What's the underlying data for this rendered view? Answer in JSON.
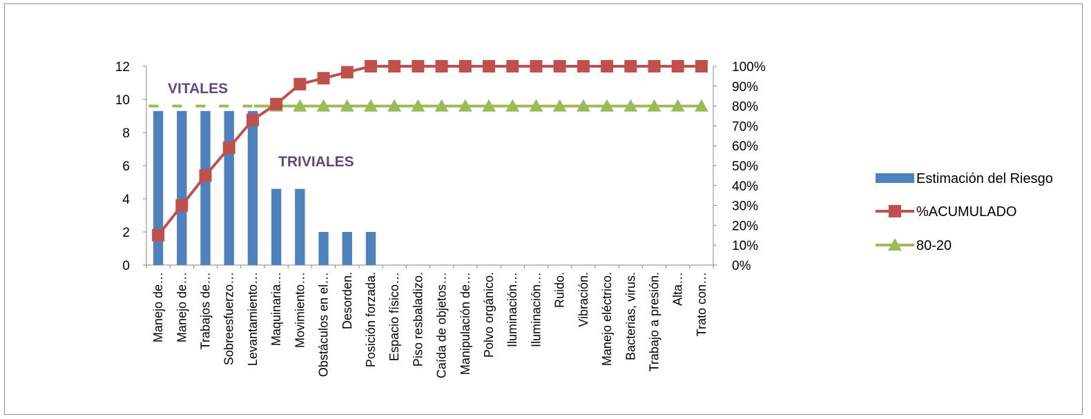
{
  "chart_data": {
    "type": "bar",
    "categories": [
      "Manejo de…",
      "Manejo de…",
      "Trabajos de…",
      "Sobreesfuerzo…",
      "Levantamiento…",
      "Maquinaria…",
      "Movimiento…",
      "Obstáculos en el…",
      "Desorden.",
      "Posición forzada.",
      "Espacio físico…",
      "Piso resbaladizo.",
      "Caída de objetos…",
      "Manipulación de…",
      "Polvo orgánico.",
      "Iluminación…",
      "Iluminación…",
      "Ruido.",
      "Vibración.",
      "Manejo eléctrico.",
      "Bacterias, virus.",
      "Trabajo a presión.",
      "Alta…",
      "Trato con…"
    ],
    "series": [
      {
        "name": "Estimación del Riesgo",
        "type": "bar",
        "axis": "left",
        "color": "#4f81bd",
        "values": [
          9.3,
          9.3,
          9.3,
          9.3,
          9.3,
          4.6,
          4.6,
          2,
          2,
          2,
          0,
          0,
          0,
          0,
          0,
          0,
          0,
          0,
          0,
          0,
          0,
          0,
          0,
          0
        ]
      },
      {
        "name": "%ACUMULADO",
        "type": "line",
        "axis": "right",
        "color": "#c0504d",
        "marker": "square",
        "values": [
          0.15,
          0.3,
          0.45,
          0.59,
          0.73,
          0.81,
          0.91,
          0.94,
          0.97,
          1,
          1,
          1,
          1,
          1,
          1,
          1,
          1,
          1,
          1,
          1,
          1,
          1,
          1,
          1
        ]
      },
      {
        "name": "80-20",
        "type": "line",
        "axis": "right",
        "color": "#9bbb59",
        "marker": "triangle",
        "values": [
          0.8,
          0.8,
          0.8,
          0.8,
          0.8,
          0.8,
          0.8,
          0.8,
          0.8,
          0.8,
          0.8,
          0.8,
          0.8,
          0.8,
          0.8,
          0.8,
          0.8,
          0.8,
          0.8,
          0.8,
          0.8,
          0.8,
          0.8,
          0.8
        ]
      }
    ],
    "y_left": {
      "min": 0,
      "max": 12,
      "ticks": [
        "0",
        "2",
        "4",
        "6",
        "8",
        "10",
        "12"
      ]
    },
    "y_right": {
      "min": 0,
      "max": 1,
      "ticks": [
        "0%",
        "10%",
        "20%",
        "30%",
        "40%",
        "50%",
        "60%",
        "70%",
        "80%",
        "90%",
        "100%"
      ]
    },
    "annotations": [
      "VITALES",
      "TRIVIALES"
    ],
    "grid": false,
    "legend_position": "right"
  }
}
